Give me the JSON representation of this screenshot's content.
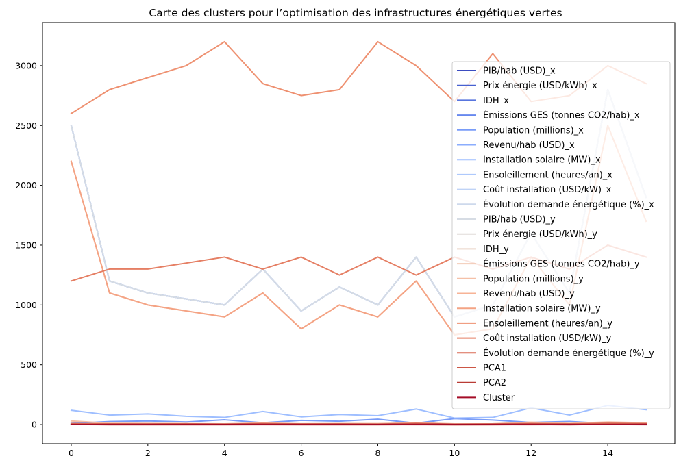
{
  "chart_data": {
    "type": "line",
    "title": "Carte des clusters pour l’optimisation des infrastructures énergétiques vertes",
    "xlabel": "",
    "ylabel": "",
    "xlim": [
      -0.75,
      15.75
    ],
    "ylim": [
      -160,
      3360
    ],
    "x_ticks": [
      0,
      2,
      4,
      6,
      8,
      10,
      12,
      14
    ],
    "y_ticks": [
      0,
      500,
      1000,
      1500,
      2000,
      2500,
      3000
    ],
    "grid": false,
    "legend_position": "right",
    "x": [
      0,
      1,
      2,
      3,
      4,
      5,
      6,
      7,
      8,
      9,
      10,
      11,
      12,
      13,
      14,
      15
    ],
    "series": [
      {
        "name": "PIB/hab (USD)_x",
        "color": "#3b4cc0",
        "values": [
          2500,
          1200,
          1100,
          1050,
          1000,
          1300,
          950,
          1150,
          1000,
          1400,
          900,
          1000,
          1600,
          1100,
          2800,
          1900
        ]
      },
      {
        "name": "Prix énergie (USD/kWh)_x",
        "color": "#4861d0",
        "values": [
          0.15,
          0.12,
          0.14,
          0.13,
          0.11,
          0.16,
          0.12,
          0.13,
          0.14,
          0.15,
          0.12,
          0.13,
          0.14,
          0.12,
          0.15,
          0.13
        ]
      },
      {
        "name": "IDH_x",
        "color": "#5875de",
        "values": [
          0.85,
          0.72,
          0.7,
          0.68,
          0.65,
          0.75,
          0.66,
          0.7,
          0.67,
          0.78,
          0.64,
          0.66,
          0.8,
          0.7,
          0.88,
          0.82
        ]
      },
      {
        "name": "Émissions GES (tonnes CO2/hab)_x",
        "color": "#6788ee",
        "values": [
          8,
          5,
          4.5,
          4,
          3.5,
          6,
          3.8,
          4.2,
          3.6,
          6.5,
          3.2,
          3.5,
          7,
          4,
          9,
          7.5
        ]
      },
      {
        "name": "Population (millions)_x",
        "color": "#799cf8",
        "values": [
          10,
          25,
          30,
          22,
          40,
          15,
          35,
          28,
          45,
          12,
          50,
          38,
          18,
          26,
          8,
          14
        ]
      },
      {
        "name": "Revenu/hab (USD)_x",
        "color": "#8badfd",
        "values": [
          2500,
          1200,
          1100,
          1050,
          1000,
          1300,
          950,
          1150,
          1000,
          1400,
          900,
          1000,
          1600,
          1100,
          2800,
          1900
        ]
      },
      {
        "name": "Installation solaire (MW)_x",
        "color": "#9ebeff",
        "values": [
          120,
          80,
          90,
          70,
          60,
          110,
          65,
          85,
          75,
          130,
          55,
          60,
          140,
          80,
          160,
          125
        ]
      },
      {
        "name": "Ensoleillement (heures/an)_x",
        "color": "#aec9fc",
        "values": [
          2500,
          1200,
          1100,
          1050,
          1000,
          1300,
          950,
          1150,
          1000,
          1400,
          900,
          1000,
          1600,
          1100,
          2800,
          1900
        ]
      },
      {
        "name": "Coût installation (USD/kW)_x",
        "color": "#bfd3f6",
        "values": [
          2500,
          1200,
          1100,
          1050,
          1000,
          1300,
          950,
          1150,
          1000,
          1400,
          900,
          1000,
          1600,
          1100,
          2800,
          1900
        ]
      },
      {
        "name": "Évolution demande énergétique (%)_x",
        "color": "#cdd9ec",
        "values": [
          5,
          3,
          3.5,
          2.8,
          2.5,
          4,
          2.6,
          3.2,
          2.4,
          4.5,
          2.2,
          2.6,
          4.8,
          3,
          5.5,
          4.2
        ]
      },
      {
        "name": "PIB/hab (USD)_y",
        "color": "#d6dce4",
        "values": [
          2500,
          1200,
          1100,
          1050,
          1000,
          1300,
          950,
          1150,
          1000,
          1400,
          900,
          1000,
          1600,
          1100,
          2800,
          1900
        ]
      },
      {
        "name": "Prix énergie (USD/kWh)_y",
        "color": "#e0dbd8",
        "values": [
          0.15,
          0.12,
          0.14,
          0.13,
          0.11,
          0.16,
          0.12,
          0.13,
          0.14,
          0.15,
          0.12,
          0.13,
          0.14,
          0.12,
          0.15,
          0.13
        ]
      },
      {
        "name": "IDH_y",
        "color": "#ead4c8",
        "values": [
          0.85,
          0.72,
          0.7,
          0.68,
          0.65,
          0.75,
          0.66,
          0.7,
          0.67,
          0.78,
          0.64,
          0.66,
          0.8,
          0.7,
          0.88,
          0.82
        ]
      },
      {
        "name": "Émissions GES (tonnes CO2/hab)_y",
        "color": "#f2cbb7",
        "values": [
          8,
          5,
          4.5,
          4,
          3.5,
          6,
          3.8,
          4.2,
          3.6,
          6.5,
          3.2,
          3.5,
          7,
          4,
          9,
          7.5
        ]
      },
      {
        "name": "Population (millions)_y",
        "color": "#f5c0a7",
        "values": [
          30,
          12,
          10,
          8,
          6,
          14,
          7,
          9,
          8,
          16,
          6,
          7,
          20,
          10,
          22,
          15
        ]
      },
      {
        "name": "Revenu/hab (USD)_y",
        "color": "#f7b396",
        "values": [
          2200,
          1100,
          1000,
          950,
          900,
          1100,
          800,
          1000,
          900,
          1200,
          750,
          800,
          1400,
          1000,
          2500,
          1700
        ]
      },
      {
        "name": "Installation solaire (MW)_y",
        "color": "#f4a384",
        "values": [
          2200,
          1100,
          1000,
          950,
          900,
          1100,
          800,
          1000,
          900,
          1200,
          750,
          800,
          1400,
          1000,
          2500,
          1700
        ]
      },
      {
        "name": "Ensoleillement (heures/an)_y",
        "color": "#ee9070",
        "values": [
          2600,
          2800,
          2900,
          3000,
          3200,
          2850,
          2750,
          2800,
          3200,
          3000,
          2700,
          3100,
          2700,
          2750,
          3000,
          2850
        ]
      },
      {
        "name": "Coût installation (USD/kW)_y",
        "color": "#e57f64",
        "values": [
          1200,
          1300,
          1300,
          1350,
          1400,
          1300,
          1400,
          1250,
          1400,
          1250,
          1400,
          1300,
          1400,
          1300,
          1500,
          1400
        ]
      },
      {
        "name": "Évolution demande énergétique (%)_y",
        "color": "#da6a55",
        "values": [
          8,
          6,
          5,
          7,
          4,
          9,
          5,
          6,
          4,
          10,
          3,
          5,
          9,
          6,
          11,
          8
        ]
      },
      {
        "name": "PCA1",
        "color": "#cc5645",
        "values": [
          2.5,
          -0.5,
          -1,
          -1.2,
          -1.5,
          0.5,
          -1.4,
          -0.8,
          -1.3,
          1,
          -1.8,
          -1.5,
          1.5,
          -0.9,
          3,
          2
        ]
      },
      {
        "name": "PCA2",
        "color": "#b93c35",
        "values": [
          0.5,
          -0.3,
          0.2,
          -0.1,
          0.4,
          -0.5,
          0.3,
          0.1,
          0.6,
          -0.4,
          0.2,
          0.5,
          -0.6,
          0.1,
          0.8,
          -0.2
        ]
      },
      {
        "name": "Cluster",
        "color": "#a50d27",
        "values": [
          0,
          1,
          1,
          1,
          1,
          2,
          1,
          1,
          1,
          2,
          1,
          1,
          2,
          1,
          0,
          2
        ]
      }
    ]
  }
}
